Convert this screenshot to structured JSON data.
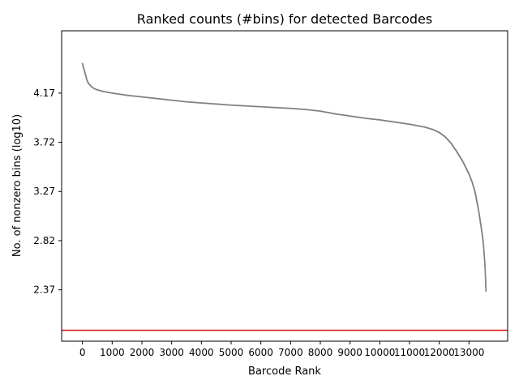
{
  "chart_data": {
    "type": "scatter",
    "title": "Ranked counts (#bins) for detected Barcodes",
    "xlabel": "Barcode Rank",
    "ylabel": "No. of nonzero bins (log10)",
    "xlim": [
      -700,
      14300
    ],
    "ylim": [
      1.9,
      4.74
    ],
    "x_ticks": [
      0,
      1000,
      2000,
      3000,
      4000,
      5000,
      6000,
      7000,
      8000,
      9000,
      10000,
      11000,
      12000,
      13000
    ],
    "x_tick_labels": [
      "0",
      "1000",
      "2000",
      "3000",
      "4000",
      "5000",
      "6000",
      "7000",
      "8000",
      "9000",
      "10000",
      "11000",
      "12000",
      "13000"
    ],
    "y_ticks": [
      2.37,
      2.82,
      3.27,
      3.72,
      4.17
    ],
    "y_tick_labels": [
      "2.37",
      "2.82",
      "3.27",
      "3.72",
      "4.17"
    ],
    "grid": false,
    "series": [
      {
        "color": "#808080",
        "x": [
          0,
          50,
          100,
          150,
          200,
          300,
          400,
          500,
          700,
          1000,
          1500,
          2000,
          2500,
          3000,
          3500,
          4000,
          5000,
          6000,
          7000,
          7500,
          8000,
          8500,
          9000,
          9500,
          10000,
          10500,
          11000,
          11500,
          11800,
          12000,
          12200,
          12400,
          12600,
          12800,
          13000,
          13100,
          13200,
          13300,
          13350,
          13400,
          13450,
          13480,
          13500,
          13520,
          13540,
          13550,
          13560,
          13570
        ],
        "values": [
          4.44,
          4.39,
          4.34,
          4.29,
          4.26,
          4.23,
          4.21,
          4.2,
          4.185,
          4.17,
          4.15,
          4.135,
          4.12,
          4.105,
          4.09,
          4.08,
          4.06,
          4.045,
          4.03,
          4.02,
          4.005,
          3.98,
          3.96,
          3.94,
          3.925,
          3.905,
          3.885,
          3.86,
          3.835,
          3.81,
          3.77,
          3.71,
          3.63,
          3.54,
          3.43,
          3.36,
          3.27,
          3.13,
          3.05,
          2.96,
          2.87,
          2.8,
          2.73,
          2.66,
          2.58,
          2.52,
          2.45,
          2.36
        ]
      }
    ],
    "hline": {
      "y": 2.0,
      "color": "#dd1c1c"
    }
  }
}
